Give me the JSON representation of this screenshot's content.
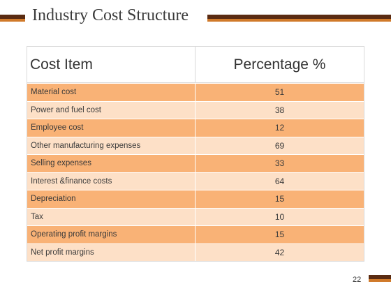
{
  "slide": {
    "title": "Industry Cost Structure",
    "page_number": "22"
  },
  "table": {
    "headers": [
      "Cost Item",
      "Percentage %"
    ],
    "rows": [
      {
        "item": "Material cost",
        "value": "51"
      },
      {
        "item": "Power and fuel cost",
        "value": "38"
      },
      {
        "item": "Employee cost",
        "value": "12"
      },
      {
        "item": "Other manufacturing expenses",
        "value": "69"
      },
      {
        "item": "Selling expenses",
        "value": "33"
      },
      {
        "item": "Interest &finance costs",
        "value": "64"
      },
      {
        "item": "Depreciation",
        "value": "15"
      },
      {
        "item": "Tax",
        "value": "10"
      },
      {
        "item": "Operating profit margins",
        "value": "15"
      },
      {
        "item": "Net profit margins",
        "value": "42"
      }
    ]
  },
  "colors": {
    "accent_dark": "#5a2b12",
    "accent_orange": "#d07a2a",
    "row_dark": "#f9b276",
    "row_light": "#fde0c7"
  }
}
